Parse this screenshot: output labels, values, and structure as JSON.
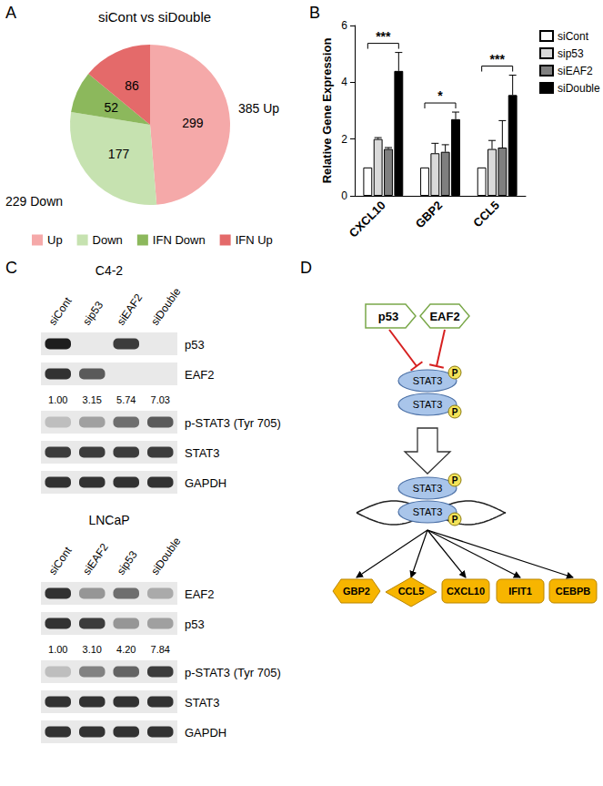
{
  "panel_labels": [
    "A",
    "B",
    "C",
    "D"
  ],
  "chart_data": [
    {
      "type": "pie",
      "title": "siCont vs siDouble",
      "categories": [
        "Up",
        "Down",
        "IFN Down",
        "IFN Up"
      ],
      "values": [
        299,
        177,
        52,
        86
      ],
      "colors": [
        "#f5a9a9",
        "#c6e2b0",
        "#8cb85c",
        "#e46a6a"
      ],
      "data_labels": true,
      "legend": "bottom",
      "annotations": [
        "385 Up",
        "229 Down"
      ]
    },
    {
      "type": "bar",
      "categories": [
        "CXCL10",
        "GBP2",
        "CCL5"
      ],
      "y_label": "Relative Gene Expression",
      "ylim": [
        0,
        6
      ],
      "yticks": [
        0,
        2,
        4,
        6
      ],
      "grid": false,
      "legend": "right",
      "series": [
        {
          "name": "siCont",
          "color": "#ffffff",
          "values": [
            1,
            1,
            1
          ],
          "errors": [
            null,
            null,
            null
          ]
        },
        {
          "name": "sip53",
          "color": "#d9d9d9",
          "values": [
            2.0,
            1.5,
            1.65
          ],
          "errors": [
            0.05,
            0.35,
            0.3
          ]
        },
        {
          "name": "siEAF2",
          "color": "#7f7f7f",
          "values": [
            1.65,
            1.55,
            1.7
          ],
          "errors": [
            0.05,
            0.25,
            0.95
          ]
        },
        {
          "name": "siDouble",
          "color": "#000000",
          "values": [
            4.4,
            2.7,
            3.55
          ],
          "errors": [
            0.65,
            0.25,
            0.7
          ]
        }
      ],
      "significance": [
        "***",
        "*",
        "***"
      ]
    }
  ],
  "blots": [
    {
      "title": "C4-2",
      "lanes": [
        "siCont",
        "sip53",
        "siEAF2",
        "siDouble"
      ],
      "rows": [
        {
          "label": "p53",
          "bands": [
            1.0,
            0.0,
            0.85,
            0.0
          ]
        },
        {
          "label": "EAF2",
          "bands": [
            0.9,
            0.7,
            0.0,
            0.0
          ]
        },
        {
          "quantification": [
            "1.00",
            "3.15",
            "5.74",
            "7.03"
          ]
        },
        {
          "label": "p-STAT3 (Tyr 705)",
          "bands": [
            0.2,
            0.35,
            0.6,
            0.7
          ]
        },
        {
          "label": "STAT3",
          "bands": [
            0.85,
            0.85,
            0.85,
            0.85
          ]
        },
        {
          "label": "GAPDH",
          "bands": [
            0.9,
            0.9,
            0.9,
            0.9
          ]
        }
      ]
    },
    {
      "title": "LNCaP",
      "lanes": [
        "siCont",
        "siEAF2",
        "sip53",
        "siDouble"
      ],
      "rows": [
        {
          "label": "EAF2",
          "bands": [
            0.9,
            0.4,
            0.6,
            0.3
          ]
        },
        {
          "label": "p53",
          "bands": [
            0.9,
            0.85,
            0.4,
            0.35
          ]
        },
        {
          "quantification": [
            "1.00",
            "3.10",
            "4.20",
            "7.84"
          ]
        },
        {
          "label": "p-STAT3 (Tyr 705)",
          "bands": [
            0.2,
            0.5,
            0.65,
            0.85
          ]
        },
        {
          "label": "STAT3",
          "bands": [
            0.9,
            0.9,
            0.9,
            0.9
          ]
        },
        {
          "label": "GAPDH",
          "bands": [
            0.9,
            0.9,
            0.9,
            0.9
          ]
        }
      ]
    }
  ],
  "diagram": {
    "inhibitors": [
      "p53",
      "EAF2"
    ],
    "complex": "STAT3",
    "modification": "P",
    "targets": [
      "GBP2",
      "CCL5",
      "CXCL10",
      "IFIT1",
      "CEBPB"
    ]
  }
}
